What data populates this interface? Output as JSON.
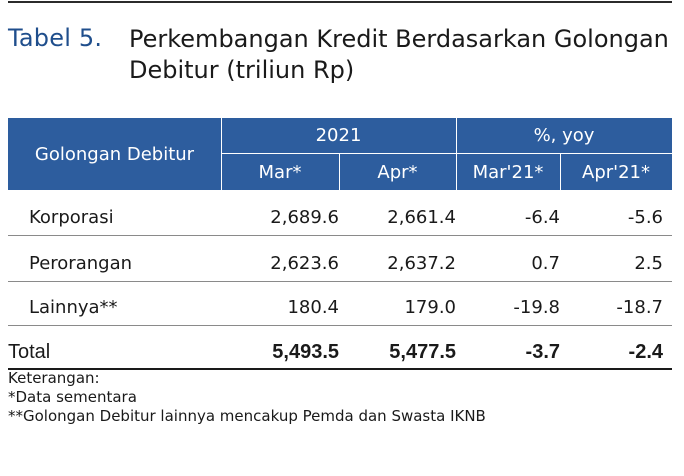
{
  "title": {
    "number": "Tabel 5.",
    "line1": "Perkembangan Kredit Berdasarkan Golongan",
    "line2": "Debitur (triliun Rp)"
  },
  "header": {
    "group_col": "Golongan Debitur",
    "year_group": "2021",
    "pct_group": "%, yoy",
    "sub": [
      "Mar*",
      "Apr*",
      "Mar'21*",
      "Apr'21*"
    ]
  },
  "rows": [
    {
      "label": "Korporasi",
      "values": [
        "2,689.6",
        "2,661.4",
        "-6.4",
        "-5.6"
      ]
    },
    {
      "label": "Perorangan",
      "values": [
        "2,623.6",
        "2,637.2",
        "0.7",
        "2.5"
      ]
    },
    {
      "label": "Lainnya**",
      "values": [
        "180.4",
        "179.0",
        "-19.8",
        "-18.7"
      ]
    }
  ],
  "total": {
    "label": "Total",
    "values": [
      "5,493.5",
      "5,477.5",
      "-3.7",
      "-2.4"
    ]
  },
  "notes": {
    "heading": "Keterangan:",
    "items": [
      "*Data sementara",
      "**Golongan Debitur lainnya mencakup Pemda dan Swasta IKNB"
    ]
  },
  "colors": {
    "header_bg": "#2d5d9e",
    "title_accent": "#1f4e8c"
  }
}
